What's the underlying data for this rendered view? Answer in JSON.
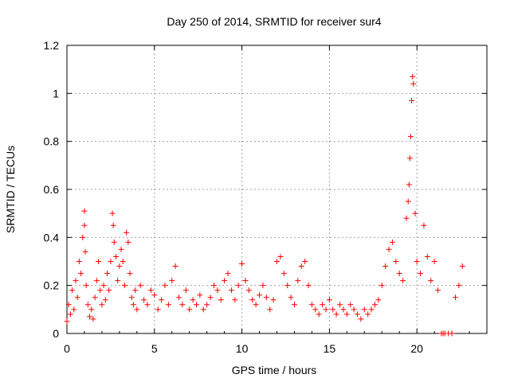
{
  "chart_data": {
    "type": "scatter",
    "title": "Day 250 of 2014, SRMTID for receiver sur4",
    "xlabel": "GPS time / hours",
    "ylabel": "SRMTID / TECUs",
    "xlim": [
      0,
      24
    ],
    "ylim": [
      0,
      1.2
    ],
    "xticks": [
      0,
      5,
      10,
      15,
      20
    ],
    "yticks": [
      0,
      0.2,
      0.4,
      0.6,
      0.8,
      1,
      1.2
    ],
    "xtick_labels": [
      "0",
      "5",
      "10",
      "15",
      "20"
    ],
    "ytick_labels": [
      "0",
      "0.2",
      "0.4",
      "0.6",
      "0.8",
      "1",
      "1.2"
    ],
    "grid": true,
    "marker": "+",
    "color": "#ff0000",
    "series": [
      {
        "name": "SRMTID",
        "x": [
          0.0,
          0.1,
          0.2,
          0.3,
          0.4,
          0.5,
          0.6,
          0.7,
          0.8,
          0.9,
          1.0,
          1.0,
          1.05,
          1.1,
          1.2,
          1.3,
          1.4,
          1.5,
          1.6,
          1.7,
          1.8,
          1.9,
          2.0,
          2.1,
          2.2,
          2.3,
          2.4,
          2.5,
          2.6,
          2.65,
          2.7,
          2.8,
          2.9,
          3.0,
          3.1,
          3.2,
          3.3,
          3.4,
          3.5,
          3.6,
          3.7,
          3.8,
          3.9,
          4.0,
          4.2,
          4.4,
          4.6,
          4.8,
          5.0,
          5.2,
          5.4,
          5.6,
          5.8,
          6.0,
          6.2,
          6.4,
          6.6,
          6.8,
          7.0,
          7.2,
          7.4,
          7.6,
          7.8,
          8.0,
          8.2,
          8.4,
          8.6,
          8.8,
          9.0,
          9.2,
          9.4,
          9.6,
          9.8,
          10.0,
          10.2,
          10.4,
          10.6,
          10.8,
          11.0,
          11.2,
          11.4,
          11.6,
          11.8,
          12.0,
          12.2,
          12.4,
          12.6,
          12.8,
          13.0,
          13.2,
          13.4,
          13.6,
          13.8,
          14.0,
          14.2,
          14.4,
          14.6,
          14.8,
          15.0,
          15.2,
          15.4,
          15.6,
          15.8,
          16.0,
          16.2,
          16.4,
          16.6,
          16.8,
          17.0,
          17.2,
          17.4,
          17.6,
          17.8,
          18.0,
          18.2,
          18.4,
          18.6,
          18.8,
          19.0,
          19.2,
          19.4,
          19.5,
          19.55,
          19.6,
          19.65,
          19.7,
          19.75,
          19.8,
          19.9,
          20.0,
          20.2,
          20.4,
          20.6,
          20.8,
          21.0,
          21.2,
          21.4,
          21.5,
          21.6,
          21.8,
          22.0,
          22.2,
          22.4,
          22.6
        ],
        "y": [
          0.05,
          0.12,
          0.08,
          0.18,
          0.1,
          0.22,
          0.15,
          0.3,
          0.25,
          0.4,
          0.51,
          0.45,
          0.34,
          0.2,
          0.12,
          0.07,
          0.1,
          0.06,
          0.15,
          0.22,
          0.3,
          0.18,
          0.12,
          0.2,
          0.14,
          0.25,
          0.18,
          0.3,
          0.5,
          0.45,
          0.38,
          0.32,
          0.22,
          0.28,
          0.35,
          0.3,
          0.2,
          0.42,
          0.38,
          0.25,
          0.15,
          0.12,
          0.18,
          0.1,
          0.2,
          0.14,
          0.12,
          0.18,
          0.16,
          0.1,
          0.14,
          0.2,
          0.12,
          0.22,
          0.28,
          0.15,
          0.12,
          0.18,
          0.1,
          0.14,
          0.12,
          0.16,
          0.1,
          0.12,
          0.15,
          0.2,
          0.18,
          0.14,
          0.22,
          0.25,
          0.18,
          0.14,
          0.2,
          0.29,
          0.22,
          0.18,
          0.14,
          0.12,
          0.16,
          0.2,
          0.15,
          0.1,
          0.14,
          0.3,
          0.32,
          0.25,
          0.2,
          0.15,
          0.12,
          0.22,
          0.28,
          0.3,
          0.2,
          0.12,
          0.1,
          0.08,
          0.12,
          0.1,
          0.14,
          0.1,
          0.08,
          0.12,
          0.1,
          0.08,
          0.12,
          0.1,
          0.08,
          0.06,
          0.1,
          0.08,
          0.1,
          0.12,
          0.14,
          0.2,
          0.28,
          0.35,
          0.38,
          0.3,
          0.25,
          0.22,
          0.48,
          0.55,
          0.62,
          0.73,
          0.82,
          0.97,
          1.07,
          1.04,
          0.5,
          0.3,
          0.25,
          0.45,
          0.32,
          0.22,
          0.3,
          0.18,
          0.0,
          0.0,
          0.0,
          0.0,
          0.0,
          0.15,
          0.2,
          0.28
        ]
      }
    ]
  }
}
